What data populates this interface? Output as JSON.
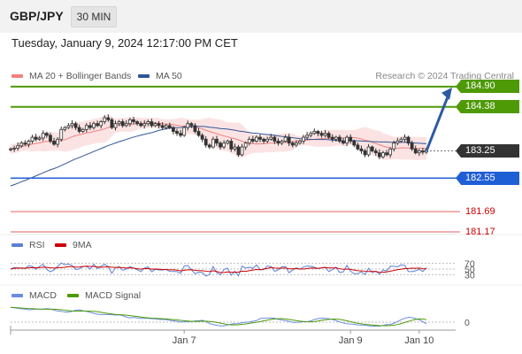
{
  "header": {
    "pair": "GBP/JPY",
    "timeframe": "30 MIN"
  },
  "datetime": "Tuesday, January 9, 2024 12:17:00 PM CET",
  "legend": {
    "ma20": "MA 20 + Bollinger Bands",
    "ma50": "MA 50",
    "credit": "Research © 2024 Trading Central",
    "rsi": "RSI",
    "ma9": "9MA",
    "macd": "MACD",
    "macd_signal": "MACD Signal"
  },
  "colors": {
    "ma20": "#f08080",
    "ma50": "#2f5597",
    "bands_fill": "#fbdada",
    "resistance": "#4e9a06",
    "current": "#333333",
    "support": "#1f5fd6",
    "red_level": "#e06060",
    "rsi": "#5b7fd6",
    "ma9": "#cc0000",
    "macd": "#6a8ce0",
    "macd_signal": "#4e9a06"
  },
  "chart_data": {
    "type": "candlestick",
    "price_levels": [
      {
        "label": "184.90",
        "value": 184.9,
        "kind": "resistance"
      },
      {
        "label": "184.38",
        "value": 184.38,
        "kind": "resistance"
      },
      {
        "label": "183.25",
        "value": 183.25,
        "kind": "current"
      },
      {
        "label": "182.55",
        "value": 182.55,
        "kind": "support"
      },
      {
        "label": "181.69",
        "value": 181.69,
        "kind": "level"
      },
      {
        "label": "181.17",
        "value": 181.17,
        "kind": "level"
      }
    ],
    "forecast_arrow": {
      "from": 183.25,
      "to": 184.9
    },
    "x_ticks": [
      "Jan 7",
      "Jan 9",
      "Jan 10"
    ],
    "x_tick_bars": [
      48,
      94,
      113
    ],
    "close": [
      183.3,
      183.32,
      183.38,
      183.45,
      183.42,
      183.5,
      183.6,
      183.55,
      183.58,
      183.7,
      183.65,
      183.5,
      183.42,
      183.55,
      183.8,
      183.85,
      183.9,
      183.95,
      183.85,
      183.75,
      183.8,
      183.9,
      183.85,
      183.95,
      183.9,
      184.0,
      184.1,
      184.05,
      183.85,
      183.95,
      184.0,
      183.9,
      183.95,
      184.05,
      184.0,
      183.95,
      183.9,
      183.95,
      184.0,
      183.9,
      183.95,
      183.9,
      183.85,
      183.9,
      183.85,
      183.75,
      183.7,
      183.65,
      183.85,
      183.95,
      183.9,
      183.75,
      183.65,
      183.55,
      183.4,
      183.35,
      183.55,
      183.45,
      183.35,
      183.45,
      183.5,
      183.3,
      183.35,
      183.15,
      183.35,
      183.45,
      183.55,
      183.5,
      183.6,
      183.55,
      183.5,
      183.55,
      183.6,
      183.5,
      183.45,
      183.5,
      183.6,
      183.45,
      183.4,
      183.45,
      183.5,
      183.6,
      183.65,
      183.7,
      183.75,
      183.7,
      183.65,
      183.7,
      183.6,
      183.55,
      183.6,
      183.5,
      183.45,
      183.6,
      183.5,
      183.4,
      183.3,
      183.25,
      183.15,
      183.35,
      183.25,
      183.2,
      183.1,
      183.2,
      183.15,
      183.3,
      183.45,
      183.5,
      183.55,
      183.6,
      183.45,
      183.3,
      183.2,
      183.25,
      183.22,
      183.28
    ],
    "rsi": {
      "ticks": [
        70,
        50,
        30
      ]
    },
    "macd": {
      "ticks": [
        0
      ]
    }
  }
}
